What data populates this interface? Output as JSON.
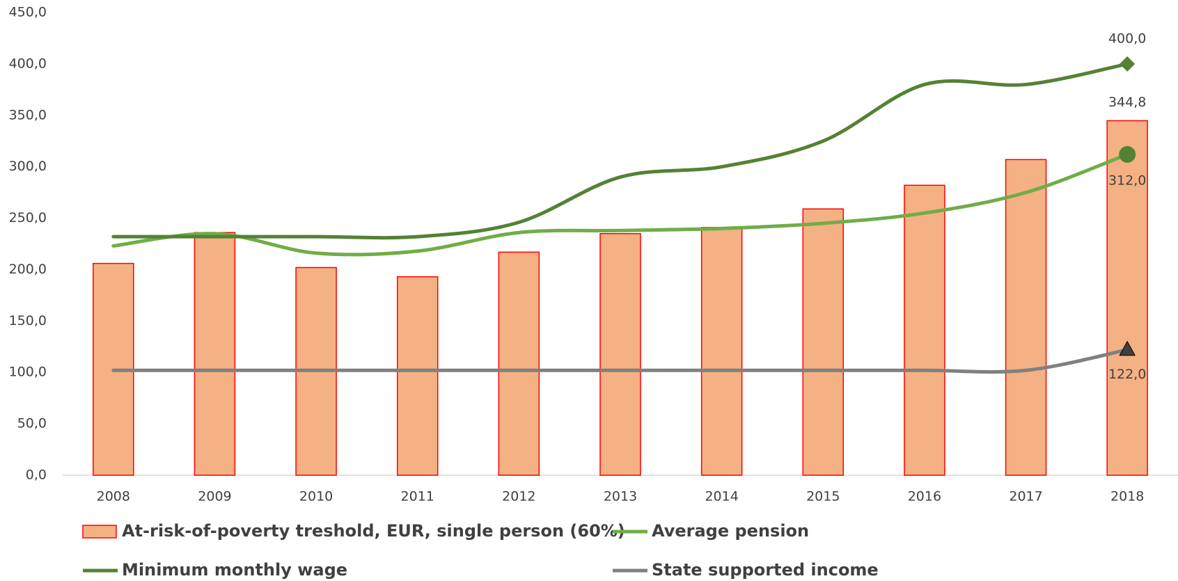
{
  "chart_data": {
    "type": "bar-line",
    "categories": [
      "2008",
      "2009",
      "2010",
      "2011",
      "2012",
      "2013",
      "2014",
      "2015",
      "2016",
      "2017",
      "2018"
    ],
    "series": [
      {
        "name": "At-risk-of-poverty treshold, EUR, single person (60%)",
        "type": "bar",
        "color": "#f4b183",
        "edge_color": "#ff0000",
        "values": [
          206,
          236,
          202,
          193,
          217,
          235,
          241,
          259,
          282,
          307,
          344.8
        ],
        "value_labels": [
          null,
          null,
          null,
          null,
          null,
          null,
          null,
          null,
          null,
          null,
          "344,8"
        ]
      },
      {
        "name": "Average pension",
        "type": "line",
        "color": "#70ad47",
        "marker": "circle",
        "values": [
          223,
          235,
          216,
          218,
          236,
          238,
          240,
          245,
          255,
          275,
          312
        ],
        "value_labels": [
          null,
          null,
          null,
          null,
          null,
          null,
          null,
          null,
          null,
          null,
          "312,0"
        ]
      },
      {
        "name": "Minimum monthly wage",
        "type": "line",
        "color": "#548235",
        "marker": "diamond",
        "values": [
          232,
          232,
          232,
          232,
          246,
          290,
          300,
          325,
          380,
          380,
          400
        ],
        "value_labels": [
          null,
          null,
          null,
          null,
          null,
          null,
          null,
          null,
          null,
          null,
          "400,0"
        ]
      },
      {
        "name": "State supported income",
        "type": "line",
        "color": "#808080",
        "marker": "triangle",
        "values": [
          102,
          102,
          102,
          102,
          102,
          102,
          102,
          102,
          102,
          102,
          122
        ],
        "value_labels": [
          null,
          null,
          null,
          null,
          null,
          null,
          null,
          null,
          null,
          null,
          "122,0"
        ]
      }
    ],
    "ylim": [
      0,
      450
    ],
    "yticks": [
      {
        "value": 0,
        "label": "0,0"
      },
      {
        "value": 50,
        "label": "50,0"
      },
      {
        "value": 100,
        "label": "100,0"
      },
      {
        "value": 150,
        "label": "150,0"
      },
      {
        "value": 200,
        "label": "200,0"
      },
      {
        "value": 250,
        "label": "250,0"
      },
      {
        "value": 300,
        "label": "300,0"
      },
      {
        "value": 350,
        "label": "350,0"
      },
      {
        "value": 400,
        "label": "400,0"
      },
      {
        "value": 450,
        "label": "450,0"
      }
    ],
    "grid": false
  }
}
